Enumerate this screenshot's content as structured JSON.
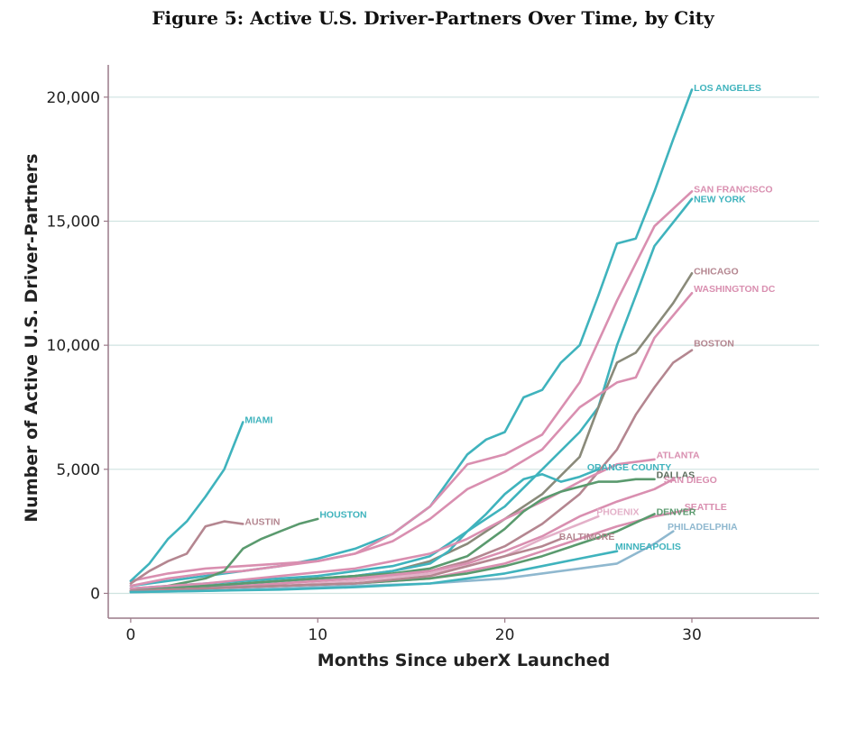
{
  "chart_data": {
    "type": "line",
    "title": "Figure 5: Active U.S. Driver-Partners Over Time, by City",
    "xlabel": "Months Since uberX Launched",
    "ylabel": "Number of Active U.S. Driver-Partners",
    "xlim": [
      -1.2,
      36.8
    ],
    "ylim": [
      -1000,
      21300
    ],
    "x_ticks": [
      0,
      10,
      20,
      30
    ],
    "y_ticks": [
      0,
      5000,
      10000,
      15000,
      20000
    ],
    "y_tick_labels": [
      "0",
      "5,000",
      "10,000",
      "15,000",
      "20,000"
    ],
    "grid": "horizontal",
    "legend": "direct labels at line ends",
    "series": [
      {
        "name": "LOS ANGELES",
        "color": "#3fb3bd",
        "x": [
          0,
          2,
          4,
          6,
          8,
          10,
          12,
          14,
          16,
          18,
          19,
          20,
          21,
          22,
          23,
          24,
          25,
          26,
          27,
          28,
          29,
          30
        ],
        "y": [
          300,
          500,
          700,
          900,
          1100,
          1400,
          1800,
          2400,
          3500,
          5600,
          6200,
          6500,
          7900,
          8200,
          9300,
          10000,
          12000,
          14100,
          14300,
          16200,
          18300,
          20300
        ]
      },
      {
        "name": "SAN FRANCISCO",
        "color": "#d98fb0",
        "x": [
          0,
          2,
          4,
          6,
          8,
          10,
          12,
          14,
          16,
          18,
          20,
          22,
          24,
          26,
          28,
          30
        ],
        "y": [
          500,
          800,
          1000,
          1100,
          1200,
          1300,
          1600,
          2400,
          3500,
          5200,
          5600,
          6400,
          8500,
          11800,
          14800,
          16200
        ]
      },
      {
        "name": "NEW YORK",
        "color": "#3fb3bd",
        "x": [
          0,
          2,
          4,
          6,
          8,
          10,
          12,
          14,
          16,
          18,
          20,
          22,
          24,
          25,
          26,
          27,
          28,
          30
        ],
        "y": [
          200,
          300,
          400,
          500,
          600,
          700,
          900,
          1100,
          1500,
          2500,
          3500,
          5000,
          6500,
          7500,
          10000,
          12000,
          14000,
          15900
        ]
      },
      {
        "name": "CHICAGO",
        "color": "#8a8a7a",
        "x": [
          0,
          2,
          4,
          6,
          8,
          10,
          12,
          14,
          16,
          18,
          20,
          22,
          24,
          25,
          26,
          27,
          28,
          29,
          30
        ],
        "y": [
          100,
          200,
          300,
          400,
          500,
          600,
          700,
          900,
          1300,
          2000,
          3000,
          4000,
          5500,
          7500,
          9300,
          9700,
          10700,
          11700,
          12900
        ]
      },
      {
        "name": "WASHINGTON DC",
        "color": "#d98fb0",
        "x": [
          0,
          2,
          4,
          6,
          8,
          10,
          12,
          14,
          16,
          18,
          20,
          22,
          24,
          26,
          27,
          28,
          30
        ],
        "y": [
          300,
          600,
          800,
          900,
          1100,
          1300,
          1600,
          2100,
          3000,
          4200,
          4900,
          5800,
          7500,
          8500,
          8700,
          10300,
          12100
        ]
      },
      {
        "name": "BOSTON",
        "color": "#b48690",
        "x": [
          0,
          2,
          4,
          6,
          8,
          10,
          12,
          14,
          16,
          18,
          20,
          22,
          24,
          26,
          27,
          28,
          29,
          30
        ],
        "y": [
          100,
          200,
          300,
          300,
          400,
          500,
          600,
          700,
          900,
          1300,
          1900,
          2800,
          4000,
          5800,
          7200,
          8300,
          9300,
          9800
        ]
      },
      {
        "name": "MIAMI",
        "color": "#3fb3bd",
        "x": [
          0,
          1,
          2,
          3,
          4,
          5,
          6
        ],
        "y": [
          500,
          1200,
          2200,
          2900,
          3900,
          5000,
          6900
        ]
      },
      {
        "name": "AUSTIN",
        "color": "#b48690",
        "x": [
          0,
          1,
          2,
          3,
          4,
          5,
          6
        ],
        "y": [
          400,
          900,
          1300,
          1600,
          2700,
          2900,
          2800
        ]
      },
      {
        "name": "HOUSTON",
        "color": "#5a9a6e",
        "x": [
          0,
          2,
          4,
          5,
          6,
          7,
          8,
          9,
          10
        ],
        "y": [
          100,
          300,
          600,
          900,
          1800,
          2200,
          2500,
          2800,
          3000
        ]
      },
      {
        "name": "ORANGE COUNTY",
        "color": "#3fb3bd",
        "x": [
          0,
          4,
          8,
          12,
          14,
          16,
          17,
          18,
          19,
          20,
          21,
          22,
          23,
          24,
          25
        ],
        "y": [
          100,
          300,
          500,
          700,
          900,
          1200,
          1700,
          2500,
          3200,
          4000,
          4600,
          4800,
          4500,
          4700,
          5000
        ]
      },
      {
        "name": "ATLANTA",
        "color": "#d98fb0",
        "x": [
          0,
          4,
          8,
          12,
          14,
          16,
          18,
          20,
          22,
          24,
          26,
          28
        ],
        "y": [
          200,
          400,
          700,
          1000,
          1300,
          1600,
          2200,
          3000,
          3700,
          4500,
          5200,
          5400
        ]
      },
      {
        "name": "DALLAS",
        "color": "#5a9a6e",
        "x": [
          0,
          4,
          8,
          12,
          14,
          16,
          18,
          20,
          21,
          22,
          23,
          24,
          25,
          26,
          27,
          28
        ],
        "y": [
          100,
          300,
          500,
          700,
          800,
          1000,
          1500,
          2600,
          3300,
          3800,
          4100,
          4300,
          4500,
          4500,
          4600,
          4600
        ]
      },
      {
        "name": "SAN DIEGO",
        "color": "#d98fb0",
        "x": [
          0,
          4,
          8,
          12,
          16,
          18,
          20,
          22,
          24,
          26,
          28,
          29
        ],
        "y": [
          100,
          200,
          400,
          600,
          900,
          1200,
          1700,
          2300,
          3100,
          3700,
          4200,
          4600
        ]
      },
      {
        "name": "PHOENIX",
        "color": "#e3b0c8",
        "x": [
          0,
          4,
          8,
          12,
          16,
          18,
          20,
          22,
          24,
          25
        ],
        "y": [
          100,
          200,
          300,
          500,
          800,
          1100,
          1500,
          2200,
          2800,
          3100
        ]
      },
      {
        "name": "SEATTLE",
        "color": "#d98fb0",
        "x": [
          0,
          4,
          8,
          12,
          16,
          18,
          20,
          22,
          24,
          26,
          28,
          30
        ],
        "y": [
          100,
          200,
          300,
          400,
          600,
          900,
          1200,
          1700,
          2200,
          2700,
          3100,
          3400
        ]
      },
      {
        "name": "DENVER",
        "color": "#5a9a6e",
        "x": [
          0,
          4,
          8,
          12,
          16,
          18,
          20,
          22,
          24,
          26,
          28
        ],
        "y": [
          100,
          200,
          300,
          400,
          600,
          800,
          1100,
          1500,
          2000,
          2500,
          3200
        ]
      },
      {
        "name": "BALTIMORE",
        "color": "#b48690",
        "x": [
          0,
          4,
          8,
          12,
          16,
          18,
          20,
          22,
          23
        ],
        "y": [
          100,
          200,
          300,
          400,
          700,
          1100,
          1500,
          1900,
          2200
        ]
      },
      {
        "name": "PHILADELPHIA",
        "color": "#8fb8cf",
        "x": [
          0,
          4,
          8,
          12,
          16,
          18,
          20,
          22,
          24,
          26,
          27,
          28,
          29
        ],
        "y": [
          50,
          100,
          200,
          300,
          400,
          500,
          600,
          800,
          1000,
          1200,
          1600,
          2000,
          2500
        ]
      },
      {
        "name": "MINNEAPOLIS",
        "color": "#3fb3bd",
        "x": [
          0,
          4,
          8,
          12,
          16,
          18,
          20,
          22,
          24,
          26
        ],
        "y": [
          50,
          100,
          150,
          250,
          400,
          600,
          800,
          1100,
          1400,
          1700
        ]
      }
    ],
    "labels": [
      {
        "text": "LOS ANGELES",
        "x": 30.1,
        "y": 20400,
        "color": "#3fb3bd"
      },
      {
        "text": "SAN FRANCISCO",
        "x": 30.1,
        "y": 16300,
        "color": "#d98fb0"
      },
      {
        "text": "NEW YORK",
        "x": 30.1,
        "y": 15900,
        "color": "#3fb3bd"
      },
      {
        "text": "CHICAGO",
        "x": 30.1,
        "y": 13000,
        "color": "#b48690"
      },
      {
        "text": "WASHINGTON DC",
        "x": 30.1,
        "y": 12300,
        "color": "#d98fb0"
      },
      {
        "text": "BOSTON",
        "x": 30.1,
        "y": 10100,
        "color": "#b48690"
      },
      {
        "text": "MIAMI",
        "x": 6.1,
        "y": 7000,
        "color": "#3fb3bd"
      },
      {
        "text": "AUSTIN",
        "x": 6.1,
        "y": 2900,
        "color": "#b48690"
      },
      {
        "text": "HOUSTON",
        "x": 10.1,
        "y": 3200,
        "color": "#3fb3bd"
      },
      {
        "text": "ORANGE COUNTY",
        "x": 24.4,
        "y": 5100,
        "color": "#3fb3bd"
      },
      {
        "text": "ATLANTA",
        "x": 28.1,
        "y": 5600,
        "color": "#d98fb0"
      },
      {
        "text": "DALLAS",
        "x": 28.1,
        "y": 4800,
        "color": "#5a6a5a"
      },
      {
        "text": "SAN DIEGO",
        "x": 28.5,
        "y": 4600,
        "color": "#d98fb0"
      },
      {
        "text": "PHOENIX",
        "x": 24.9,
        "y": 3300,
        "color": "#e3b0c8"
      },
      {
        "text": "SEATTLE",
        "x": 29.6,
        "y": 3500,
        "color": "#d98fb0"
      },
      {
        "text": "DENVER",
        "x": 28.1,
        "y": 3300,
        "color": "#5a9a6e"
      },
      {
        "text": "BALTIMORE",
        "x": 22.9,
        "y": 2300,
        "color": "#b48690"
      },
      {
        "text": "PHILADELPHIA",
        "x": 28.7,
        "y": 2700,
        "color": "#8fb8cf"
      },
      {
        "text": "MINNEAPOLIS",
        "x": 25.9,
        "y": 1900,
        "color": "#3fb3bd"
      }
    ]
  }
}
